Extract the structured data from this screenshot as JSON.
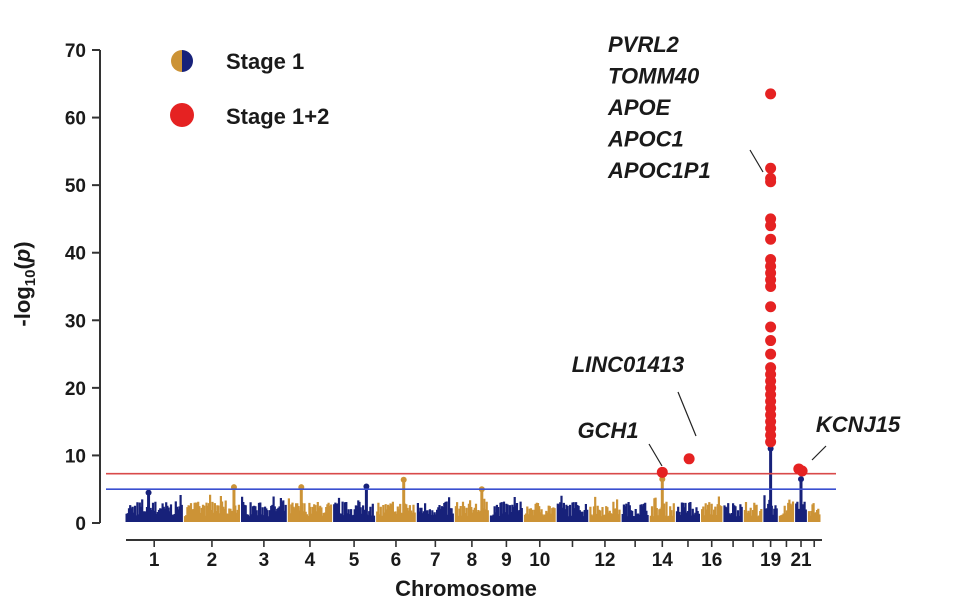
{
  "chart_data": {
    "type": "scatter",
    "subtype": "manhattan",
    "xlabel": "Chromosome",
    "ylabel_prefix": "-log",
    "ylabel_sub": "10",
    "ylabel_var": "p",
    "ylim": [
      0,
      70
    ],
    "yticks": [
      0,
      10,
      20,
      30,
      40,
      50,
      60,
      70
    ],
    "chromosomes": [
      {
        "chr": "1",
        "size": 249
      },
      {
        "chr": "2",
        "size": 243
      },
      {
        "chr": "3",
        "size": 198
      },
      {
        "chr": "4",
        "size": 191
      },
      {
        "chr": "5",
        "size": 181
      },
      {
        "chr": "6",
        "size": 171
      },
      {
        "chr": "7",
        "size": 159
      },
      {
        "chr": "8",
        "size": 146
      },
      {
        "chr": "9",
        "size": 141
      },
      {
        "chr": "10",
        "size": 136
      },
      {
        "chr": "11",
        "size": 135
      },
      {
        "chr": "12",
        "size": 134
      },
      {
        "chr": "13",
        "size": 115
      },
      {
        "chr": "14",
        "size": 107
      },
      {
        "chr": "15",
        "size": 102
      },
      {
        "chr": "16",
        "size": 90
      },
      {
        "chr": "17",
        "size": 81
      },
      {
        "chr": "18",
        "size": 78
      },
      {
        "chr": "19",
        "size": 59
      },
      {
        "chr": "20",
        "size": 63
      },
      {
        "chr": "21",
        "size": 48
      },
      {
        "chr": "22",
        "size": 51
      }
    ],
    "x_tick_labels": [
      "1",
      "2",
      "3",
      "4",
      "5",
      "6",
      "7",
      "8",
      "9",
      "10",
      "12",
      "14",
      "16",
      "19",
      "21"
    ],
    "stage1_peaks": [
      {
        "chr": "1",
        "pos": 0.4,
        "p": 4.5
      },
      {
        "chr": "2",
        "pos": 0.9,
        "p": 5.3
      },
      {
        "chr": "4",
        "pos": 0.3,
        "p": 5.3
      },
      {
        "chr": "5",
        "pos": 0.8,
        "p": 5.4
      },
      {
        "chr": "6",
        "pos": 0.7,
        "p": 6.4
      },
      {
        "chr": "8",
        "pos": 0.8,
        "p": 5.0
      },
      {
        "chr": "14",
        "pos": 0.5,
        "p": 6.5
      },
      {
        "chr": "19",
        "pos": 0.5,
        "p": 11.0
      },
      {
        "chr": "21",
        "pos": 0.5,
        "p": 6.5
      }
    ],
    "stage12_points": [
      {
        "chr": "14",
        "pos": 0.5,
        "p": 7.5
      },
      {
        "chr": "15",
        "pos": 0.55,
        "p": 9.5
      },
      {
        "chr": "19",
        "pos": 0.5,
        "p": [
          12,
          13,
          14,
          15,
          16,
          17,
          18,
          19,
          20,
          21,
          22,
          23,
          25,
          27,
          29,
          32,
          35,
          36,
          37,
          38,
          39,
          42,
          44,
          45,
          50.5,
          51,
          52.5,
          63.5
        ]
      },
      {
        "chr": "21",
        "pos": 0.3,
        "p": 8.0
      },
      {
        "chr": "21",
        "pos": 0.6,
        "p": 7.7
      }
    ],
    "thresholds": [
      {
        "value": 7.3,
        "color": "#d94a4a"
      },
      {
        "value": 5.0,
        "color": "#3a4fd0"
      }
    ],
    "legend": [
      {
        "label": "Stage 1",
        "marker": "split"
      },
      {
        "label": "Stage 1+2",
        "marker": "red"
      }
    ],
    "annotations": [
      {
        "lines": [
          "PVRL2",
          "TOMM40",
          "APOE",
          "APOC1",
          "APOC1P1"
        ],
        "target_chr": "19",
        "target_p": 51
      },
      {
        "lines": [
          "LINC01413"
        ],
        "target_chr": "15",
        "target_p": 9.5
      },
      {
        "lines": [
          "GCH1"
        ],
        "target_chr": "14",
        "target_p": 7.5
      },
      {
        "lines": [
          "KCNJ15"
        ],
        "target_chr": "21",
        "target_p": 8.0
      }
    ]
  },
  "colors": {
    "blue": "#17217a",
    "gold": "#cc9336",
    "red": "#e52222",
    "axis": "#333333"
  }
}
